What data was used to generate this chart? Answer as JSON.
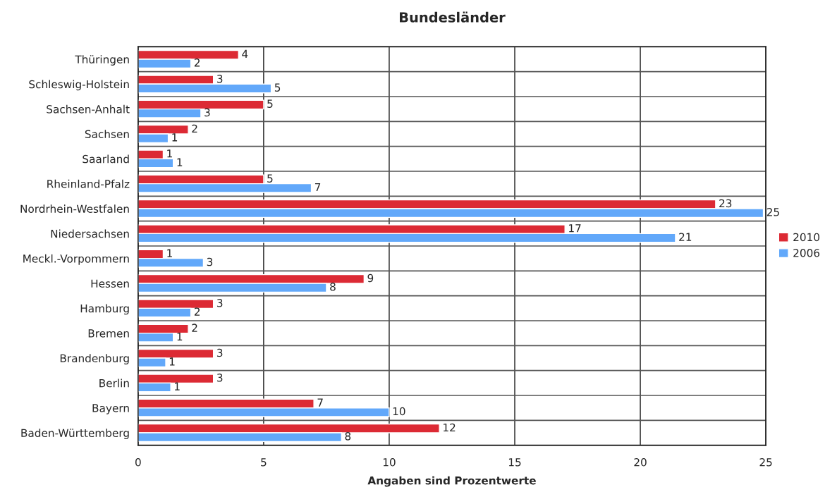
{
  "chart_data": {
    "type": "bar",
    "orientation": "horizontal",
    "title": "Bundesländer",
    "xlabel": "Angaben sind Prozentwerte",
    "categories": [
      "Thüringen",
      "Schleswig-Holstein",
      "Sachsen-Anhalt",
      "Sachsen",
      "Saarland",
      "Rheinland-Pfalz",
      "Nordrhein-Westfalen",
      "Niedersachsen",
      "Meckl.-Vorpommern",
      "Hessen",
      "Hamburg",
      "Bremen",
      "Brandenburg",
      "Berlin",
      "Bayern",
      "Baden-Württemberg"
    ],
    "series": [
      {
        "name": "2010",
        "color": "#dc2a34",
        "values": [
          4.0,
          3.0,
          5.0,
          2.0,
          1.0,
          5.0,
          23.0,
          17.0,
          1.0,
          9.0,
          3.0,
          2.0,
          3.0,
          3.0,
          7.0,
          12.0
        ],
        "value_labels": [
          "4",
          "3",
          "5",
          "2",
          "1",
          "5",
          "23",
          "17",
          "1",
          "9",
          "3",
          "2",
          "3",
          "3",
          "7",
          "12"
        ]
      },
      {
        "name": "2006",
        "color": "#62a8fa",
        "values": [
          2.1,
          5.3,
          2.5,
          1.2,
          1.4,
          6.9,
          24.9,
          21.4,
          2.6,
          7.5,
          2.1,
          1.4,
          1.1,
          1.3,
          10.0,
          8.1
        ],
        "value_labels": [
          "2",
          "5",
          "3",
          "1",
          "1",
          "7",
          "25",
          "21",
          "3",
          "8",
          "2",
          "1",
          "1",
          "1",
          "10",
          "8"
        ]
      }
    ],
    "xlim": [
      0,
      25
    ],
    "xticks": [
      0,
      5,
      10,
      15,
      20,
      25
    ],
    "grid": true,
    "legend": "right"
  }
}
